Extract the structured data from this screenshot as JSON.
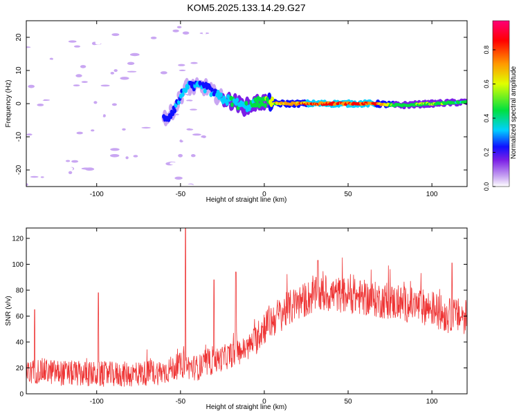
{
  "title": "KOM5.2025.133.14.29.G27",
  "colors": {
    "snr_line": "#ee3333",
    "colormap": [
      "#ffffff",
      "#c9a6f2",
      "#7b1fe6",
      "#1010ff",
      "#00d0ff",
      "#00e040",
      "#e0ff00",
      "#ff9900",
      "#ff0000",
      "#ff0077"
    ]
  },
  "chart_data": [
    {
      "type": "heatmap",
      "xlabel": "Height of straight line (km)",
      "ylabel": "Frequency (Hz)",
      "xlim": [
        -142,
        121
      ],
      "ylim": [
        -25,
        25
      ],
      "x_ticks": [
        -100,
        -50,
        0,
        50,
        100
      ],
      "y_ticks": [
        -20,
        -10,
        0,
        10,
        20
      ],
      "colorbar": {
        "label": "Normalized spectral amplitude",
        "range": [
          0,
          0.97
        ],
        "ticks": [
          0.0,
          0.2,
          0.4,
          0.6,
          0.8
        ]
      },
      "ridge": [
        {
          "x": -57,
          "f": -4,
          "amp": 0.3
        },
        {
          "x": -52,
          "f": 0,
          "amp": 0.35
        },
        {
          "x": -47,
          "f": 5,
          "amp": 0.4
        },
        {
          "x": -35,
          "f": 5,
          "amp": 0.35
        },
        {
          "x": -30,
          "f": 3,
          "amp": 0.38
        },
        {
          "x": -25,
          "f": 1.5,
          "amp": 0.45
        },
        {
          "x": -18,
          "f": 0.5,
          "amp": 0.5
        },
        {
          "x": -12,
          "f": -1,
          "amp": 0.45
        },
        {
          "x": -8,
          "f": -0.5,
          "amp": 0.5
        },
        {
          "x": -3,
          "f": 0.5,
          "amp": 0.55
        },
        {
          "x": 0,
          "f": 0.5,
          "amp": 0.6
        },
        {
          "x": 10,
          "f": 0,
          "amp": 0.85
        },
        {
          "x": 30,
          "f": 0,
          "amp": 0.97
        },
        {
          "x": 50,
          "f": 0,
          "amp": 0.97
        },
        {
          "x": 66,
          "f": 0,
          "amp": 0.95
        },
        {
          "x": 80,
          "f": -0.5,
          "amp": 0.6
        },
        {
          "x": 100,
          "f": 0,
          "amp": 0.65
        },
        {
          "x": 121,
          "f": 0.5,
          "amp": 0.55
        }
      ]
    },
    {
      "type": "line",
      "xlabel": "Height of straight line (km)",
      "ylabel": "SNR (v/v)",
      "xlim": [
        -142,
        121
      ],
      "ylim": [
        0,
        128
      ],
      "x_ticks": [
        -100,
        -50,
        0,
        50,
        100
      ],
      "y_ticks": [
        0,
        20,
        40,
        60,
        80,
        100,
        120
      ],
      "envelope_x": [
        -142,
        -135,
        -120,
        -100,
        -80,
        -60,
        -50,
        -40,
        -30,
        -20,
        -10,
        0,
        10,
        20,
        30,
        40,
        50,
        60,
        70,
        80,
        90,
        100,
        110,
        121
      ],
      "envelope_mean": [
        15,
        18,
        16,
        15,
        15,
        17,
        22,
        20,
        25,
        30,
        35,
        52,
        62,
        70,
        76,
        77,
        76,
        74,
        72,
        70,
        68,
        66,
        60,
        60
      ],
      "peaks": [
        {
          "x": -137,
          "y": 65
        },
        {
          "x": -99,
          "y": 78
        },
        {
          "x": -47,
          "y": 128
        },
        {
          "x": -30,
          "y": 88
        },
        {
          "x": -17,
          "y": 94
        },
        {
          "x": 32,
          "y": 103
        },
        {
          "x": 112,
          "y": 101
        }
      ]
    }
  ]
}
